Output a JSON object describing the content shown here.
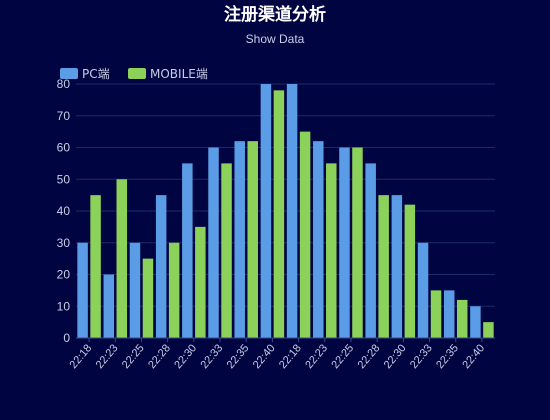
{
  "chart_data": {
    "type": "bar",
    "title": "注册渠道分析",
    "subtitle": "Show Data",
    "categories": [
      "22:18",
      "22:23",
      "22:25",
      "22:28",
      "22:30",
      "22:33",
      "22:35",
      "22:40",
      "22:18",
      "22:23",
      "22:25",
      "22:28",
      "22:30",
      "22:33",
      "22:35",
      "22:40"
    ],
    "series": [
      {
        "name": "PC端",
        "color": "#5b9ce6",
        "values": [
          30,
          20,
          30,
          45,
          55,
          60,
          62,
          80,
          80,
          62,
          60,
          55,
          45,
          30,
          15,
          10
        ]
      },
      {
        "name": "MOBILE端",
        "color": "#8bd15a",
        "values": [
          45,
          50,
          25,
          30,
          35,
          55,
          62,
          78,
          65,
          55,
          60,
          45,
          42,
          15,
          12,
          5
        ]
      }
    ],
    "ylim": [
      0,
      80
    ],
    "yticks": [
      0,
      10,
      20,
      30,
      40,
      50,
      60,
      70,
      80
    ],
    "grid": true,
    "legend_position": "top-left",
    "background": "#000541",
    "grid_color": "#1d2a66",
    "text_color": "#c8cde8"
  }
}
